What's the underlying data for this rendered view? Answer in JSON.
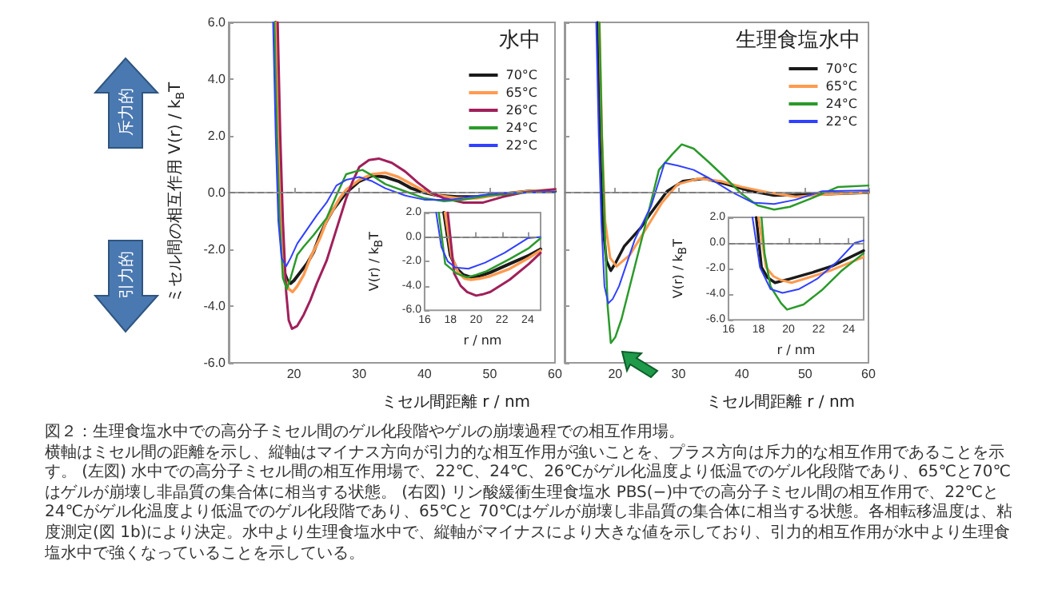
{
  "chart_data": [
    {
      "type": "line",
      "legend_title": "水中",
      "xlabel": "ミセル間距離 r / nm",
      "ylabel": "ミセル間の相互作用 V(r) / k$_{B}$T",
      "xlim": [
        10,
        60
      ],
      "ylim": [
        -6,
        6
      ],
      "xticks": [
        20,
        30,
        40,
        50,
        60
      ],
      "yticks": [
        {
          "value": -6,
          "label": "-6.0"
        },
        {
          "value": -4,
          "label": "-4.0"
        },
        {
          "value": -2,
          "label": "-2.0"
        },
        {
          "value": 0,
          "label": "0.0"
        },
        {
          "value": 2,
          "label": "2.0"
        },
        {
          "value": 4,
          "label": "4.0"
        },
        {
          "value": 6,
          "label": "6.0"
        }
      ],
      "legend": "top right",
      "ref_lines": [
        {
          "axis": "y",
          "value": 0,
          "color": "#808080",
          "line_style": "dashed"
        }
      ],
      "annotations": [
        "斥力的",
        "引力的",
        "図２：生理食塩水中での高分子ミセル間のゲル化段階やゲルの崩壊過程での相互作用場。",
        "横軸はミセル間の距離を示し、縦軸はマイナス方向が引力的な相互作用が強いことを、プラス方向は斥力的な相互作用であることを示す。 (左図) 水中での高分子ミセル間の相互作用場で、22℃、24℃、26℃がゲル化温度より低温でのゲル化段階であり、65℃と70℃はゲルが崩壊し非晶質の集合体に相当する状態。 (右図) リン酸緩衝生理食塩水 PBS(−)中での高分子ミセル間の相互作用で、22℃と24℃がゲル化温度より低温でのゲル化段階であり、65℃と 70℃はゲルが崩壊し非晶質の集合体に相当する状態。各相転移温度は、粘度測定(図 1b)により決定。水中より生理食塩水中で、縦軸がマイナスにより大きな値を示しており、引力的相互作用が水中より生理食塩水中で強くなっていることを示している。"
      ],
      "series": [
        {
          "name": "70°C",
          "color": "#1a1a1a",
          "x": [
            17.2,
            17.6,
            18,
            18.5,
            19,
            19.5,
            20,
            21,
            22,
            23,
            24,
            25,
            26,
            27,
            28,
            30,
            32,
            34,
            36,
            38,
            40,
            42,
            45,
            48,
            52,
            56,
            60
          ],
          "values": [
            6,
            2,
            -1,
            -2.8,
            -3.1,
            -3.2,
            -3.1,
            -2.8,
            -2.5,
            -2.1,
            -1.5,
            -1,
            -0.6,
            -0.3,
            0,
            0.4,
            0.6,
            0.55,
            0.4,
            0.15,
            0,
            -0.1,
            -0.15,
            -0.15,
            -0.05,
            0.05,
            0.05
          ]
        },
        {
          "name": "65°C",
          "color": "#ff9a50",
          "x": [
            17.3,
            17.7,
            18.1,
            18.6,
            19.2,
            19.8,
            20.5,
            21.5,
            22.5,
            24,
            25,
            26,
            27,
            28,
            30,
            32,
            34,
            36,
            38,
            40,
            42,
            45,
            48,
            52,
            56,
            60
          ],
          "values": [
            6,
            2,
            -1,
            -3,
            -3.4,
            -3.5,
            -3.3,
            -2.9,
            -2.3,
            -1.6,
            -1,
            -0.6,
            -0.2,
            0.1,
            0.45,
            0.65,
            0.7,
            0.55,
            0.3,
            0.05,
            -0.1,
            -0.2,
            -0.2,
            -0.05,
            0.05,
            0.1
          ]
        },
        {
          "name": "26°C",
          "color": "#a0205a",
          "x": [
            17.5,
            17.9,
            18.3,
            18.8,
            19.2,
            19.7,
            20.5,
            21.5,
            22.5,
            23.5,
            25,
            26.5,
            28,
            29,
            30,
            31.5,
            33,
            35,
            37,
            39,
            41,
            43,
            46,
            49,
            52,
            55,
            60
          ],
          "values": [
            6,
            2,
            -1,
            -3.5,
            -4.5,
            -4.8,
            -4.7,
            -4.3,
            -3.8,
            -3.2,
            -2.4,
            -1.3,
            -0.2,
            0.4,
            0.9,
            1.15,
            1.2,
            1.05,
            0.75,
            0.35,
            0,
            -0.2,
            -0.35,
            -0.35,
            -0.15,
            0,
            0.12
          ]
        },
        {
          "name": "24°C",
          "color": "#2a9a2a",
          "x": [
            17,
            17.4,
            17.8,
            18.3,
            18.9,
            19.5,
            20.5,
            21.5,
            23,
            25,
            26.5,
            28,
            29.5,
            30.5,
            32,
            34,
            37,
            40,
            43,
            46,
            50,
            55,
            60
          ],
          "values": [
            6,
            2,
            -1,
            -3,
            -3.4,
            -3,
            -2.2,
            -1.9,
            -1.5,
            -0.9,
            -0.1,
            0.65,
            0.75,
            0.8,
            0.6,
            0.3,
            0.05,
            -0.2,
            -0.3,
            -0.25,
            -0.1,
            0,
            0.03
          ]
        },
        {
          "name": "22°C",
          "color": "#3040ff",
          "x": [
            16.8,
            17.2,
            17.6,
            18.1,
            18.8,
            19.5,
            20.5,
            22,
            23.5,
            25,
            26.5,
            28,
            30,
            32,
            34,
            37,
            40,
            44,
            50,
            55,
            60
          ],
          "values": [
            6,
            2,
            -1,
            -2.3,
            -2.6,
            -2.3,
            -1.8,
            -1.3,
            -0.8,
            -0.35,
            0.25,
            0.45,
            0.55,
            0.4,
            0.15,
            -0.1,
            -0.25,
            -0.25,
            -0.05,
            0,
            0.03
          ]
        }
      ]
    },
    {
      "type": "line",
      "xlabel": "r / nm",
      "ylabel": "V(r) / k$_{B}$T",
      "xlim": [
        16,
        25
      ],
      "ylim": [
        -6,
        2
      ],
      "xticks": [
        16,
        18,
        20,
        22,
        24
      ],
      "yticks": [
        {
          "value": -6,
          "label": "-6.0"
        },
        {
          "value": -4,
          "label": "-4.0"
        },
        {
          "value": -2,
          "label": "-2.0"
        },
        {
          "value": 0,
          "label": "0.0"
        },
        {
          "value": 2,
          "label": "2.0"
        }
      ],
      "ref_lines": [
        {
          "axis": "y",
          "value": 0,
          "color": "#808080",
          "line_style": "dashed"
        }
      ],
      "series": [
        {
          "color": "#1a1a1a",
          "x": [
            17.5,
            18,
            18.5,
            19,
            19.6,
            20.3,
            21.1,
            22.6,
            24.1,
            25
          ],
          "values": [
            2,
            -1.5,
            -2.6,
            -3.1,
            -3.3,
            -3.2,
            -2.9,
            -2.2,
            -1.5,
            -1
          ]
        },
        {
          "color": "#ff9a50",
          "x": [
            17.6,
            18.1,
            18.6,
            19.1,
            19.6,
            20.3,
            21.1,
            22.6,
            24.1,
            25
          ],
          "values": [
            2,
            -1.6,
            -2.9,
            -3.4,
            -3.5,
            -3.4,
            -3.2,
            -2.6,
            -1.7,
            -1.1
          ]
        },
        {
          "color": "#a0205a",
          "x": [
            17.8,
            18.3,
            18.8,
            19.3,
            20,
            20.5,
            21.1,
            22.6,
            24.1,
            25
          ],
          "values": [
            2,
            -3,
            -4,
            -4.5,
            -4.8,
            -4.7,
            -4.5,
            -3.5,
            -2.2,
            -1.3
          ]
        },
        {
          "color": "#2a9a2a",
          "x": [
            17.1,
            17.6,
            18.5,
            19.3,
            20,
            20.8,
            22.6,
            24.1,
            25
          ],
          "values": [
            2,
            -2.2,
            -3,
            -3.3,
            -3.1,
            -2.8,
            -1.8,
            -0.9,
            -0.1
          ]
        },
        {
          "color": "#3040ff",
          "x": [
            16.9,
            17.3,
            17.8,
            18.4,
            19.4,
            20.7,
            22.2,
            24,
            25
          ],
          "values": [
            2,
            -0.8,
            -2,
            -2.5,
            -2.6,
            -2.1,
            -1.3,
            -0.1,
            0
          ]
        }
      ]
    },
    {
      "type": "line",
      "legend_title": "生理食塩水中",
      "xlabel": "ミセル間距離 r / nm",
      "xlim": [
        12,
        60
      ],
      "ylim": [
        -6,
        6
      ],
      "xticks": [
        20,
        30,
        40,
        50,
        60
      ],
      "yticks": [
        -6,
        -4,
        -2,
        0,
        2,
        4,
        6
      ],
      "tick_labels": "x",
      "legend": "top right",
      "ref_lines": [
        {
          "axis": "y",
          "value": 0,
          "color": "#808080",
          "line_style": "dashed"
        }
      ],
      "series": [
        {
          "name": "70°C",
          "color": "#1a1a1a",
          "x": [
            17.2,
            17.6,
            18,
            18.6,
            19.3,
            20,
            21.4,
            24,
            25.7,
            28.2,
            30.7,
            34.1,
            37.5,
            40.9,
            45.1,
            51,
            60
          ],
          "values": [
            6,
            2,
            -1,
            -2.4,
            -2.75,
            -2.5,
            -1.9,
            -1.25,
            -0.7,
            0.05,
            0.4,
            0.5,
            0.3,
            0.08,
            -0.1,
            -0.07,
            0
          ]
        },
        {
          "name": "65°C",
          "color": "#ff9a50",
          "x": [
            17.5,
            17.9,
            18.4,
            19.2,
            20.2,
            21,
            22.3,
            24.8,
            27.4,
            29.9,
            33.3,
            36.7,
            40,
            44.3,
            48.5,
            54,
            60
          ],
          "values": [
            6,
            2,
            -1,
            -2.3,
            -2.6,
            -2.45,
            -2.2,
            -1.3,
            -0.35,
            0.3,
            0.5,
            0.4,
            0.2,
            0,
            -0.15,
            -0.05,
            0
          ]
        },
        {
          "name": "24°C",
          "color": "#2a9a2a",
          "x": [
            17.5,
            17.9,
            18.3,
            18.8,
            19.3,
            20,
            21,
            22.7,
            24.8,
            26.9,
            29,
            30.5,
            32.4,
            34.9,
            37.5,
            40,
            42.5,
            45.1,
            47.6,
            51,
            55.2,
            60
          ],
          "values": [
            6,
            2,
            -1,
            -4,
            -5.3,
            -5.1,
            -4.45,
            -2.95,
            -1.1,
            0.8,
            1.35,
            1.7,
            1.55,
            1.05,
            0.5,
            -0.05,
            -0.45,
            -0.6,
            -0.5,
            -0.2,
            0.2,
            0.25
          ]
        },
        {
          "name": "22°C",
          "color": "#3040ff",
          "x": [
            17,
            17.4,
            17.8,
            18.3,
            18.9,
            19.6,
            20.6,
            23.1,
            25.7,
            27.8,
            29.9,
            32.4,
            34.9,
            38.3,
            41.7,
            45.1,
            48.5,
            52.7,
            60
          ],
          "values": [
            6,
            2,
            -1,
            -3.3,
            -3.9,
            -3.75,
            -3.3,
            -1.65,
            -0.45,
            1.05,
            0.95,
            0.8,
            0.5,
            0.03,
            -0.35,
            -0.4,
            -0.25,
            0.05,
            0.08
          ]
        }
      ]
    },
    {
      "type": "line",
      "xlabel": "r / nm",
      "ylabel": "V(r) / k$_{B}$T",
      "xlim": [
        16,
        25
      ],
      "ylim": [
        -6,
        2
      ],
      "xticks": [
        16,
        18,
        20,
        22,
        24
      ],
      "yticks": [
        {
          "value": -6,
          "label": "-6.0"
        },
        {
          "value": -4,
          "label": "-4.0"
        },
        {
          "value": -2,
          "label": "-2.0"
        },
        {
          "value": 0,
          "label": "0.0"
        },
        {
          "value": 2,
          "label": "2.0"
        }
      ],
      "ref_lines": [
        {
          "axis": "y",
          "value": 0,
          "color": "#808080",
          "line_style": "dashed"
        }
      ],
      "series": [
        {
          "color": "#1a1a1a",
          "x": [
            17.85,
            18.2,
            18.6,
            19.1,
            20.1,
            21.6,
            22.9,
            25
          ],
          "values": [
            2,
            -1.9,
            -2.7,
            -3.1,
            -2.8,
            -2.3,
            -1.8,
            -0.6
          ]
        },
        {
          "color": "#ff9a50",
          "x": [
            18,
            18.5,
            19,
            19.5,
            20.2,
            21.6,
            22.9,
            25
          ],
          "values": [
            2,
            -1.9,
            -2.6,
            -2.9,
            -3.1,
            -2.6,
            -2.1,
            -1.1
          ]
        },
        {
          "color": "#2a9a2a",
          "x": [
            18.2,
            18.4,
            18.8,
            19.5,
            19.9,
            21,
            22.2,
            23.5,
            25
          ],
          "values": [
            2,
            -0.8,
            -3.4,
            -4.7,
            -5.2,
            -4.8,
            -3.7,
            -2.2,
            -0.8
          ]
        },
        {
          "color": "#3040ff",
          "x": [
            17.6,
            18.1,
            18.8,
            19.6,
            20.7,
            21.9,
            23.2,
            24.4,
            25
          ],
          "values": [
            2,
            -1.9,
            -3.6,
            -3.9,
            -3.6,
            -2.8,
            -1.5,
            0,
            0.2
          ]
        }
      ]
    }
  ]
}
